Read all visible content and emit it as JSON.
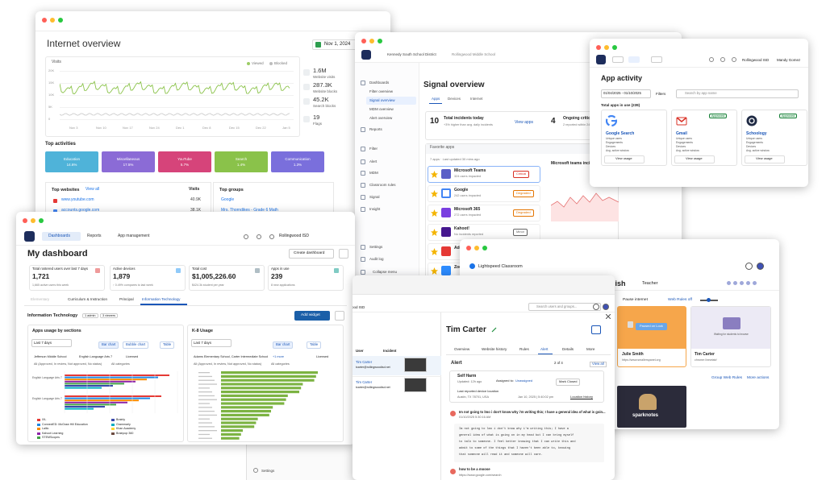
{
  "internet_overview": {
    "title": "Internet overview",
    "date": "Nov 1, 2024",
    "chart": {
      "title": "Visits",
      "legend": [
        "Viewed",
        "Blocked"
      ],
      "y_labels": [
        "20K",
        "15K",
        "10K",
        "5K",
        "0"
      ],
      "x_labels": [
        "Nov 3",
        "Nov 10",
        "Nov 17",
        "Nov 24",
        "Dec 1",
        "Dec 8",
        "Dec 15",
        "Dec 22",
        "Jan 5"
      ]
    },
    "stats": [
      {
        "value": "1.6M",
        "label": "Website visits"
      },
      {
        "value": "287.3K",
        "label": "Website blocks"
      },
      {
        "value": "45.2K",
        "label": "Search blocks"
      },
      {
        "value": "19",
        "label": "Flags"
      }
    ],
    "top_activities": {
      "title": "Top activities",
      "items": [
        {
          "name": "Education",
          "value": "14.6%"
        },
        {
          "name": "Miscellaneous",
          "value": "17.5%"
        },
        {
          "name": "YouTube",
          "value": "5.7%"
        },
        {
          "name": "Search",
          "value": "1.4%"
        },
        {
          "name": "Communication",
          "value": "1.3%"
        }
      ]
    },
    "top_websites": {
      "title": "Top websites",
      "link": "View all",
      "column": "Visits",
      "rows": [
        {
          "site": "www.youtube.com",
          "visits": "40.9K"
        },
        {
          "site": "accounts.google.com",
          "visits": "38.1K"
        }
      ]
    },
    "top_groups": {
      "title": "Top groups",
      "rows": [
        "Google",
        "Mrs. Thorndikes - Grade 6 Math"
      ]
    }
  },
  "signal_overview": {
    "district": "Kennedy South School District",
    "school": "Rollingwood Middle School",
    "nav": [
      "Dashboards",
      "Filter overview",
      "Signal overview",
      "MDM overview",
      "Alert overview",
      "Reports",
      "Filter",
      "Alert",
      "MDM",
      "Classroom rules",
      "Signal",
      "Insight",
      "Settings",
      "Audit log",
      "Collapse menu"
    ],
    "title": "Signal overview",
    "tabs": [
      "Apps",
      "Devices",
      "Internet"
    ],
    "summary": [
      {
        "value": "10",
        "label": "Total incidents today",
        "note": "+3% higher than avg. daily incidents",
        "link": "View apps"
      },
      {
        "value": "4",
        "label": "Ongoing critical",
        "note": "2 reported within 24 hrs"
      }
    ],
    "favorites": {
      "title": "Favorite apps",
      "meta": "7 apps · Last updated 30 mins ago",
      "apps": [
        {
          "name": "Microsoft Teams",
          "impact": "324 users impacted",
          "status": "Critical"
        },
        {
          "name": "Google",
          "impact": "242 users impacted",
          "status": "Degraded"
        },
        {
          "name": "Microsoft 365",
          "impact": "272 users impacted",
          "status": "Degraded"
        },
        {
          "name": "Kahoot!",
          "impact": "No incidents reported",
          "status": "Minor"
        },
        {
          "name": "Adobe"
        },
        {
          "name": "Zoom"
        }
      ]
    },
    "incident_chart": "Microsoft teams incidents"
  },
  "app_activity": {
    "org": "Rollingwood ISD",
    "user": "Mandy Gomez",
    "title": "App activity",
    "date_range": "01/04/2025 - 01/10/2025",
    "filters": "Filters",
    "search": "Search by app name",
    "total": "Total apps in use (239)",
    "metrics": [
      "Unique users",
      "Engagements",
      "Devices",
      "Avg. active window"
    ],
    "apps": [
      {
        "name": "Google Search",
        "button": "View usage"
      },
      {
        "name": "Gmail",
        "badge": "Approved",
        "button": "View usage"
      },
      {
        "name": "Schoology",
        "badge": "Approved",
        "button": "View usage"
      }
    ]
  },
  "dashboard": {
    "nav": [
      "Dashboards",
      "Reports",
      "App management"
    ],
    "org": "Rollingwood ISD",
    "title": "My dashboard",
    "create": "Create dashboard",
    "cards": [
      {
        "label": "Total rostered users over last 7 days",
        "value": "1,721",
        "note": "1,665 active users this week"
      },
      {
        "label": "Active devices",
        "value": "1,879",
        "note": "↑ 0.49% compares to last week"
      },
      {
        "label": "Total cost",
        "value": "$1,005,226.60",
        "note": "$424.3k student per year"
      },
      {
        "label": "Apps in use",
        "value": "239",
        "note": "8 new applications"
      }
    ],
    "tabs": [
      "Elementary",
      "Curriculum & Instruction",
      "Principal",
      "Information Technology"
    ],
    "section": {
      "title": "Information Technology",
      "pills": [
        "1 admin",
        "3 viewers"
      ],
      "add": "Add widget"
    },
    "widgets": [
      {
        "title": "Apps usage by sections",
        "period": "Last 7 days",
        "views": [
          "Bar chart",
          "Bubble chart",
          "Table"
        ],
        "filters": [
          "Jefferson Middle School",
          "English Language Arts 7",
          "Licensed"
        ],
        "status": "All (Approved, In review, Not approved, No status)",
        "category": "All categories",
        "rows": [
          "English Language Arts 7",
          "English Language Arts 7"
        ],
        "legend": [
          "IXL",
          "ConnectED: McGraw Hill Education",
          "Lalilo",
          "Kahoot Learning",
          "STEMScopes",
          "Brainly",
          "Grammarly",
          "Khan Academy",
          "Brainpop 360"
        ]
      },
      {
        "title": "K-8 Usage",
        "period": "Last 7 days",
        "views": [
          "Bar chart",
          "Table"
        ],
        "filters": [
          "Adams Elementary School, Carter Intermediate School",
          "+1 more",
          "Licensed"
        ],
        "status": "All (Approved, In review, Not approved, No status)",
        "category": "All categories"
      }
    ]
  },
  "classroom": {
    "app": "Lightspeed Classroom",
    "class": "English",
    "role": "Teacher",
    "pause": "Pause internet",
    "web_rules": "Web Rules off",
    "students": [
      {
        "name": "Julie Smith",
        "url": "https://www.smallerspanel.org",
        "state": "Paused on Lock"
      },
      {
        "name": "Tim Carter",
        "url": "chrome://newtab/",
        "state": "Waiting for students to browse"
      }
    ],
    "actions": [
      "Group Web Rules",
      "More actions"
    ],
    "thumbnail": "sparknotes"
  },
  "alert_view": {
    "org": "Rollingwood ISD",
    "search": "Search users and groups...",
    "columns": [
      "User",
      "Incident"
    ],
    "users": [
      {
        "name": "Tim Carter",
        "email": "tcarter@rollingwoodisd.net"
      },
      {
        "name": "Tim Carter",
        "email": "tcarter@rollingwoodisd.net"
      }
    ],
    "name": "Tim Carter",
    "tabs": [
      "Overview",
      "Website history",
      "Rules",
      "Alert",
      "Details",
      "More"
    ],
    "section": "Alert",
    "pager": "2 of 4",
    "view_all": "View all",
    "incident": {
      "type": "Self Harm",
      "updated": "Updated: 12h ago",
      "assigned_label": "Assigned to:",
      "assignee": "Unassigned",
      "close": "Mark Closed",
      "location_label": "Last reported device location",
      "location": "Austin, TX 78701, USA",
      "time": "Jan 10, 2025 | 5:40:02 pm",
      "history": "Location history"
    },
    "message": {
      "title": "Im not going to lmo i don't know why i'm writing this; I have a general idea of what is goin...",
      "time": "01/10/2025 5:30:16 AM",
      "lines": [
        "Im not going to lmo i don't know why i'm writing this; I have a",
        "general idea of what is going on in my head but I can bring myself",
        "to talk to someone. I feel better knowing that I can write this and",
        "admit to some of the things that I haven't been able to, knowing",
        "that someone will read it and someone will care."
      ]
    },
    "search_item": {
      "title": "how to be a moose",
      "url": "https://www.google.com/search"
    }
  },
  "settings_panel": {
    "label": "Settings"
  }
}
